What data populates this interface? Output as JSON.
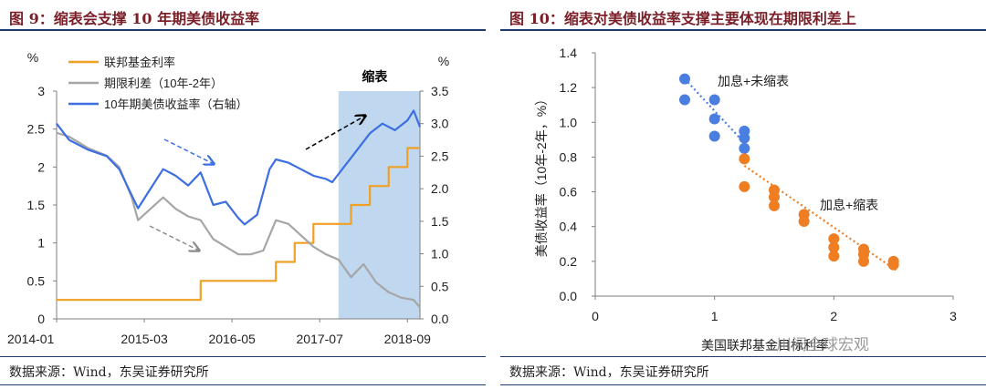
{
  "left": {
    "title": "图 9：缩表会支撑 10 年期美债收益率",
    "source": "数据来源：Wind，东吴证券研究所",
    "band_label": "缩表",
    "colors": {
      "fed_rate": "#f0a024",
      "spread": "#a6a6a6",
      "yield": "#3d6fe0",
      "band": "#bfd8ef",
      "arrow_blue": "#3d6fe0",
      "arrow_gray": "#8c8c8c",
      "arrow_black": "#000000"
    },
    "chart_data": {
      "type": "line",
      "title": "缩表会支撑 10 年期美债收益率",
      "x_ticks": [
        "2014-01",
        "2015-03",
        "2016-05",
        "2017-07",
        "2018-09"
      ],
      "y_left_unit": "%",
      "y_right_unit": "%",
      "y_left_ticks": [
        "0",
        "0.5",
        "1",
        "1.5",
        "2",
        "2.5",
        "3"
      ],
      "y_right_ticks": [
        "0.0",
        "0.5",
        "1.0",
        "1.5",
        "2.0",
        "2.5",
        "3.0",
        "3.5"
      ],
      "ylim_left": [
        0,
        3
      ],
      "ylim_right": [
        0,
        3.5
      ],
      "legend_placement": "top-left",
      "shaded_period": {
        "label": "缩表",
        "start": "2017-10",
        "end": "2018-11"
      },
      "series": [
        {
          "name": "联邦基金利率",
          "axis": "left",
          "x": [
            "2014-01",
            "2015-12",
            "2015-12",
            "2016-12",
            "2016-12",
            "2017-03",
            "2017-03",
            "2017-06",
            "2017-06",
            "2017-12",
            "2017-12",
            "2018-03",
            "2018-03",
            "2018-06",
            "2018-06",
            "2018-09",
            "2018-09",
            "2018-11"
          ],
          "values": [
            0.25,
            0.25,
            0.5,
            0.5,
            0.75,
            0.75,
            1.0,
            1.0,
            1.25,
            1.25,
            1.5,
            1.5,
            1.75,
            1.75,
            2.0,
            2.0,
            2.25,
            2.25
          ]
        },
        {
          "name": "期限利差（10年-2年）",
          "axis": "left",
          "x": [
            "2014-01",
            "2014-03",
            "2014-06",
            "2014-09",
            "2014-11",
            "2015-01",
            "2015-02",
            "2015-04",
            "2015-06",
            "2015-08",
            "2015-10",
            "2015-12",
            "2016-02",
            "2016-04",
            "2016-06",
            "2016-08",
            "2016-10",
            "2016-12",
            "2017-02",
            "2017-04",
            "2017-06",
            "2017-08",
            "2017-10",
            "2017-12",
            "2018-02",
            "2018-04",
            "2018-06",
            "2018-08",
            "2018-10",
            "2018-11"
          ],
          "values": [
            2.45,
            2.4,
            2.25,
            2.15,
            2.0,
            1.6,
            1.3,
            1.45,
            1.6,
            1.45,
            1.35,
            1.3,
            1.05,
            0.95,
            0.85,
            0.85,
            0.9,
            1.3,
            1.25,
            1.1,
            0.95,
            0.85,
            0.78,
            0.55,
            0.72,
            0.48,
            0.35,
            0.28,
            0.25,
            0.15
          ]
        },
        {
          "name": "10年期美债收益率（右轴）",
          "axis": "right",
          "x": [
            "2014-01",
            "2014-03",
            "2014-06",
            "2014-09",
            "2014-11",
            "2015-01",
            "2015-02",
            "2015-04",
            "2015-06",
            "2015-08",
            "2015-10",
            "2015-12",
            "2016-02",
            "2016-04",
            "2016-06",
            "2016-07",
            "2016-09",
            "2016-11",
            "2016-12",
            "2017-02",
            "2017-04",
            "2017-06",
            "2017-08",
            "2017-09",
            "2017-11",
            "2018-01",
            "2018-03",
            "2018-05",
            "2018-07",
            "2018-09",
            "2018-10",
            "2018-11"
          ],
          "values": [
            3.0,
            2.75,
            2.6,
            2.5,
            2.3,
            1.9,
            1.7,
            2.0,
            2.3,
            2.2,
            2.05,
            2.25,
            1.75,
            1.8,
            1.55,
            1.45,
            1.6,
            2.3,
            2.45,
            2.4,
            2.3,
            2.2,
            2.15,
            2.1,
            2.35,
            2.6,
            2.85,
            3.0,
            2.9,
            3.05,
            3.2,
            2.95
          ]
        }
      ]
    }
  },
  "right": {
    "title": "图 10：缩表对美债收益率支撑主要体现在期限利差上",
    "source": "数据来源：Wind，东吴证券研究所",
    "watermark": "川阅全球宏观",
    "colors": {
      "blue": "#4a7ee0",
      "orange": "#ef7d22"
    },
    "chart_data": {
      "type": "scatter",
      "title": "缩表对美债收益率支撑主要体现在期限利差上",
      "xlabel": "美国联邦基金目标利率",
      "ylabel": "美债收益率（10年-2年，%）",
      "xlim": [
        0,
        3
      ],
      "ylim": [
        0,
        1.4
      ],
      "x_ticks": [
        "0",
        "1",
        "2",
        "3"
      ],
      "y_ticks": [
        "0.0",
        "0.2",
        "0.4",
        "0.6",
        "0.8",
        "1.0",
        "1.2",
        "1.4"
      ],
      "series": [
        {
          "name": "加息+未缩表",
          "points": [
            [
              0.75,
              1.25
            ],
            [
              0.75,
              1.13
            ],
            [
              1.0,
              1.13
            ],
            [
              1.0,
              1.02
            ],
            [
              1.0,
              0.92
            ],
            [
              1.25,
              0.95
            ],
            [
              1.25,
              0.91
            ],
            [
              1.25,
              0.85
            ]
          ]
        },
        {
          "name": "加息+缩表",
          "points": [
            [
              1.25,
              0.79
            ],
            [
              1.25,
              0.63
            ],
            [
              1.5,
              0.61
            ],
            [
              1.5,
              0.57
            ],
            [
              1.5,
              0.52
            ],
            [
              1.75,
              0.47
            ],
            [
              1.75,
              0.43
            ],
            [
              2.0,
              0.33
            ],
            [
              2.0,
              0.28
            ],
            [
              2.0,
              0.23
            ],
            [
              2.25,
              0.27
            ],
            [
              2.25,
              0.24
            ],
            [
              2.25,
              0.2
            ],
            [
              2.5,
              0.2
            ],
            [
              2.5,
              0.18
            ]
          ]
        }
      ]
    }
  }
}
